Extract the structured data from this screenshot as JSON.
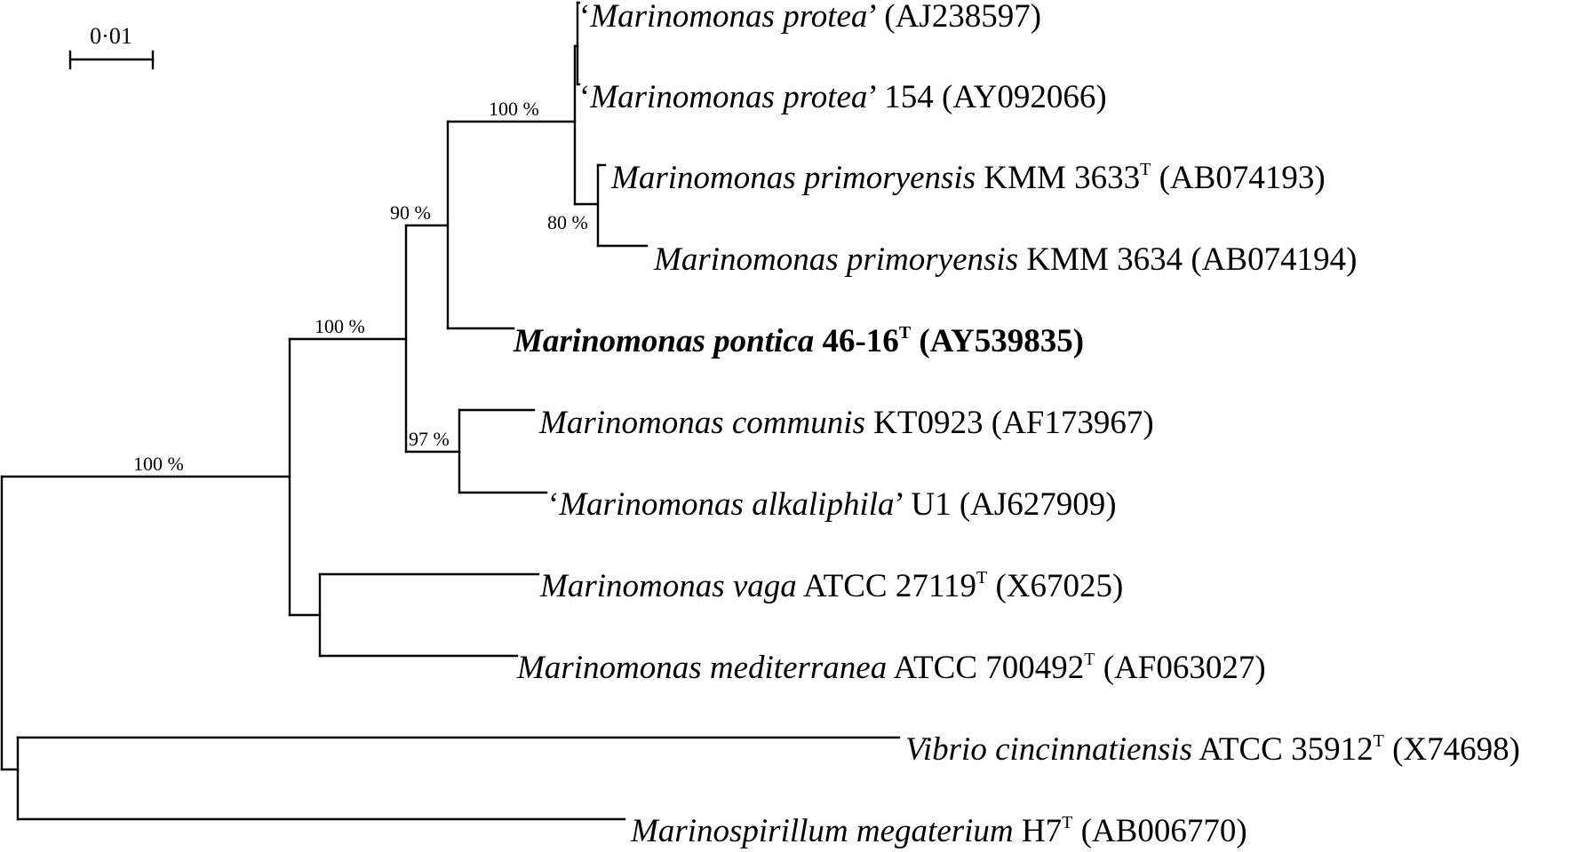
{
  "scale_bar": {
    "label": "0·01",
    "value": 0.01
  },
  "leaves": [
    {
      "id": "l1",
      "q_open": "‘",
      "genus": "Marinomonas",
      "species": "protea",
      "q_close": "’",
      "strain": "",
      "type_strain": false,
      "accession": "(AJ238597)",
      "bold": false
    },
    {
      "id": "l2",
      "q_open": "‘",
      "genus": "Marinomonas",
      "species": "protea",
      "q_close": "’",
      "strain": " 154",
      "type_strain": false,
      "accession": "(AY092066)",
      "bold": false
    },
    {
      "id": "l3",
      "q_open": "",
      "genus": "Marinomonas",
      "species": "primoryensis",
      "q_close": "",
      "strain": " KMM 3633",
      "type_strain": true,
      "accession": "(AB074193)",
      "bold": false
    },
    {
      "id": "l4",
      "q_open": "",
      "genus": "Marinomonas",
      "species": "primoryensis",
      "q_close": "",
      "strain": " KMM 3634",
      "type_strain": false,
      "accession": "(AB074194)",
      "bold": false
    },
    {
      "id": "l5",
      "q_open": "",
      "genus": "Marinomonas",
      "species": "pontica",
      "q_close": "",
      "strain": " 46-16",
      "type_strain": true,
      "accession": "(AY539835)",
      "bold": true
    },
    {
      "id": "l6",
      "q_open": "",
      "genus": "Marinomonas",
      "species": "communis",
      "q_close": "",
      "strain": " KT0923",
      "type_strain": false,
      "accession": "(AF173967)",
      "bold": false
    },
    {
      "id": "l7",
      "q_open": "‘",
      "genus": "Marinomonas",
      "species": "alkaliphila",
      "q_close": "’",
      "strain": " U1",
      "type_strain": false,
      "accession": "(AJ627909)",
      "bold": false
    },
    {
      "id": "l8",
      "q_open": "",
      "genus": "Marinomonas",
      "species": "vaga",
      "q_close": "",
      "strain": " ATCC 27119",
      "type_strain": true,
      "accession": "(X67025)",
      "bold": false
    },
    {
      "id": "l9",
      "q_open": "",
      "genus": "Marinomonas",
      "species": "mediterranea",
      "q_close": "",
      "strain": " ATCC 700492",
      "type_strain": true,
      "accession": "(AF063027)",
      "bold": false
    },
    {
      "id": "l10",
      "q_open": "",
      "genus": "Vibrio",
      "species": "cincinnatiensis",
      "q_close": "",
      "strain": " ATCC 35912",
      "type_strain": true,
      "accession": "(X74698)",
      "bold": false
    },
    {
      "id": "l11",
      "q_open": "",
      "genus": "Marinospirillum",
      "species": "megaterium",
      "q_close": "",
      "strain": " H7",
      "type_strain": true,
      "accession": "(AB006770)",
      "bold": false
    }
  ],
  "type_strain_marker": "T",
  "bootstrap_values": {
    "root_marinomonas": "100 %",
    "marinomonas_main": "100 %",
    "inner_90": "90 %",
    "protea_primoryensis": "100 %",
    "primoryensis": "80 %",
    "communis_alkaliphila": "97 %"
  }
}
